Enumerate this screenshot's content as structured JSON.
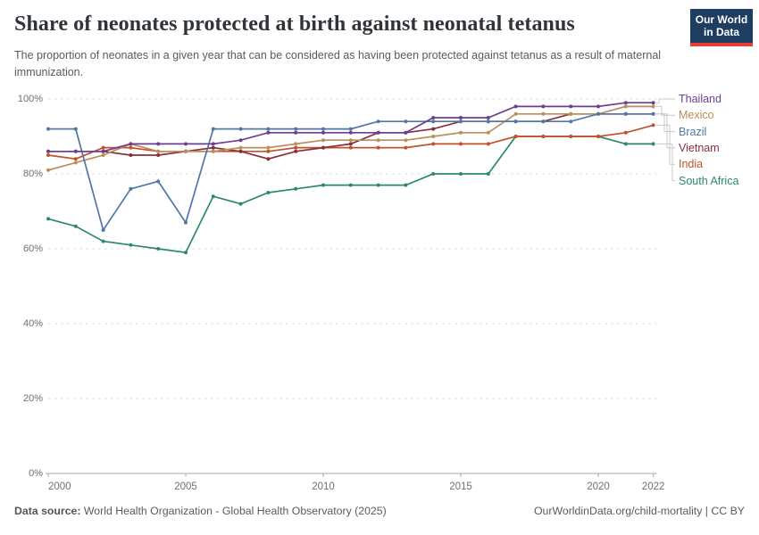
{
  "header": {
    "title": "Share of neonates protected at birth against neonatal tetanus",
    "subtitle": "The proportion of neonates in a given year that can be considered as having been protected against tetanus as a result of maternal immunization.",
    "logo": {
      "line1": "Our World",
      "line2": "in Data"
    }
  },
  "footer": {
    "datasource_label": "Data source:",
    "datasource": " World Health Organization - Global Health Observatory (2025)",
    "url": "OurWorldinData.org/child-mortality",
    "separator": " | ",
    "license": "CC BY"
  },
  "chart_data": {
    "type": "line",
    "title": "Share of neonates protected at birth against neonatal tetanus",
    "x": [
      2000,
      2001,
      2002,
      2003,
      2004,
      2005,
      2006,
      2007,
      2008,
      2009,
      2010,
      2011,
      2012,
      2013,
      2014,
      2015,
      2016,
      2017,
      2018,
      2019,
      2020,
      2021,
      2022
    ],
    "series": [
      {
        "name": "Thailand",
        "color": "#6D3E91",
        "values": [
          86,
          86,
          86,
          88,
          88,
          88,
          88,
          89,
          91,
          91,
          91,
          91,
          91,
          91,
          95,
          95,
          95,
          98,
          98,
          98,
          98,
          99,
          99
        ]
      },
      {
        "name": "Mexico",
        "color": "#BC8E5A",
        "values": [
          81,
          83,
          85,
          88,
          86,
          86,
          86,
          87,
          87,
          88,
          89,
          89,
          89,
          89,
          90,
          91,
          91,
          96,
          96,
          96,
          96,
          98,
          98
        ]
      },
      {
        "name": "Brazil",
        "color": "#5077A9",
        "values": [
          92,
          92,
          65,
          76,
          78,
          67,
          92,
          92,
          92,
          92,
          92,
          92,
          94,
          94,
          94,
          94,
          94,
          94,
          94,
          94,
          96,
          96,
          96
        ]
      },
      {
        "name": "Vietnam",
        "color": "#883039",
        "values": [
          86,
          86,
          86,
          85,
          85,
          86,
          87,
          86,
          84,
          86,
          87,
          88,
          91,
          91,
          92,
          94,
          94,
          94,
          94,
          96,
          96,
          96,
          96
        ]
      },
      {
        "name": "India",
        "color": "#C0532D",
        "values": [
          85,
          84,
          87,
          87,
          86,
          86,
          86,
          86,
          86,
          87,
          87,
          87,
          87,
          87,
          88,
          88,
          88,
          90,
          90,
          90,
          90,
          91,
          93
        ]
      },
      {
        "name": "South Africa",
        "color": "#2C8A68",
        "values": [
          68,
          66,
          62,
          61,
          60,
          59,
          74,
          72,
          75,
          76,
          77,
          77,
          77,
          77,
          80,
          80,
          80,
          90,
          90,
          90,
          90,
          88,
          88
        ]
      }
    ],
    "draw_order": [
      "South Africa",
      "India",
      "Vietnam",
      "Mexico",
      "Brazil",
      "Thailand"
    ],
    "yticks": [
      {
        "label": "0%",
        "value": 0
      },
      {
        "label": "20%",
        "value": 20
      },
      {
        "label": "40%",
        "value": 40
      },
      {
        "label": "60%",
        "value": 60
      },
      {
        "label": "80%",
        "value": 80
      },
      {
        "label": "100%",
        "value": 100
      }
    ],
    "xticks": [
      {
        "label": "2000",
        "value": 2000
      },
      {
        "label": "2005",
        "value": 2005
      },
      {
        "label": "2010",
        "value": 2010
      },
      {
        "label": "2015",
        "value": 2015
      },
      {
        "label": "2020",
        "value": 2020
      },
      {
        "label": "2022",
        "value": 2022
      }
    ],
    "ylim": [
      0,
      100
    ],
    "xlim": [
      2000,
      2022
    ],
    "grid": true,
    "legend_position": "right"
  },
  "colors": {
    "logo_bg": "#1D3D63",
    "logo_bar": "#E63E36",
    "gridline": "#dcdcdc",
    "axis": "#a8a8a8",
    "connector": "#c9c9c9",
    "axis_text": "#6f6f6f"
  }
}
